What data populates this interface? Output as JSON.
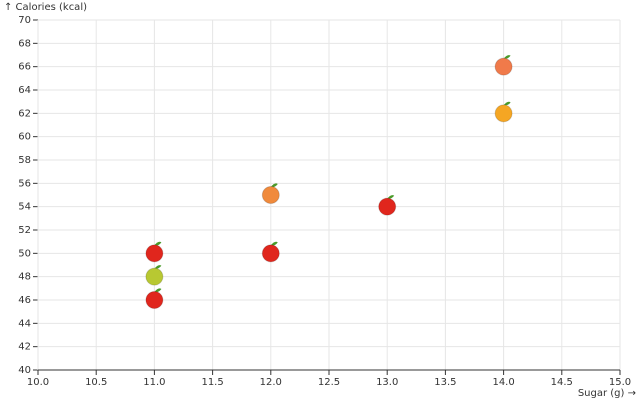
{
  "chart_data": {
    "type": "scatter",
    "y_label": "↑ Calories (kcal)",
    "x_label": "Sugar (g) →",
    "x": [
      11,
      11,
      11,
      12,
      12,
      13,
      14,
      14
    ],
    "values": [
      50,
      48,
      46,
      55,
      50,
      54,
      66,
      62
    ],
    "colors": [
      "#e0261d",
      "#b8c832",
      "#e0261d",
      "#f08a3c",
      "#e0261d",
      "#e0261d",
      "#f07a4a",
      "#f5a623"
    ],
    "xlim": [
      10,
      15
    ],
    "ylim": [
      40,
      70
    ],
    "xticks": [
      {
        "value": 10,
        "label": "10.0"
      },
      {
        "value": 10.5,
        "label": "10.5"
      },
      {
        "value": 11,
        "label": "11.0"
      },
      {
        "value": 11.5,
        "label": "11.5"
      },
      {
        "value": 12,
        "label": "12.0"
      },
      {
        "value": 12.5,
        "label": "12.5"
      },
      {
        "value": 13,
        "label": "13.0"
      },
      {
        "value": 13.5,
        "label": "13.5"
      },
      {
        "value": 14,
        "label": "14.0"
      },
      {
        "value": 14.5,
        "label": "14.5"
      },
      {
        "value": 15,
        "label": "15.0"
      }
    ],
    "yticks": [
      40,
      42,
      44,
      46,
      48,
      50,
      52,
      54,
      56,
      58,
      60,
      62,
      64,
      66,
      68,
      70
    ],
    "grid": true
  }
}
